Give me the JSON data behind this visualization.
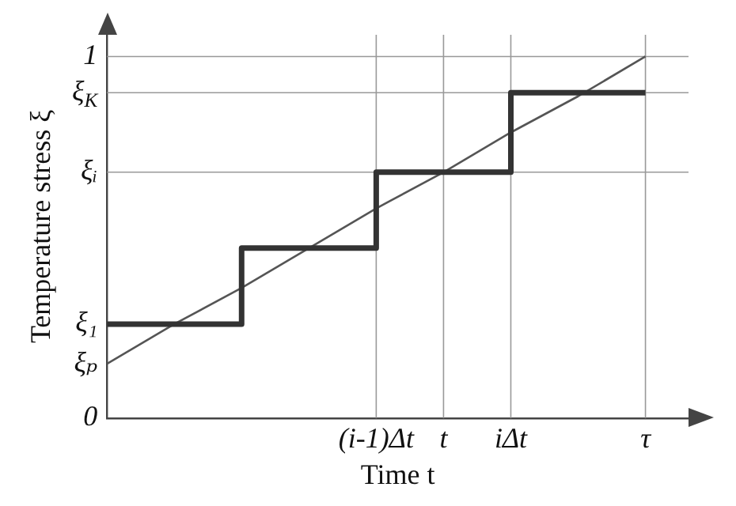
{
  "chart_data": {
    "type": "line",
    "xlabel": "Time t",
    "ylabel": "Temperature stress ξ",
    "categories": [
      null,
      null,
      null,
      null,
      "(i-1)Δt",
      "t",
      "iΔt",
      null,
      "τ"
    ],
    "ylim": [
      0,
      1.06
    ],
    "yticks": [
      0,
      {
        "value": 0.15,
        "label": "ξₚ"
      },
      {
        "value": 0.26,
        "label": "ξ₁"
      },
      {
        "value": 0.68,
        "label": "ξᵢ"
      },
      {
        "value": 0.9,
        "label": "ξ$_{K}$"
      },
      1
    ],
    "series": [
      {
        "type": "step",
        "color": "#333333",
        "values": [
          0.26,
          0.26,
          0.47,
          0.47,
          0.68,
          0.68,
          0.9,
          0.9,
          0.9
        ]
      },
      {
        "type": "line",
        "color": "#555555",
        "values": [
          0.15,
          0.26,
          0.36,
          0.47,
          0.58,
          0.68,
          0.79,
          0.89,
          1
        ]
      }
    ],
    "ref_lines": [
      {
        "axis": "y",
        "value": 1,
        "color": "#999999"
      },
      {
        "axis": "y",
        "value": 0.9,
        "color": "#999999"
      },
      {
        "axis": "y",
        "value": 0.68,
        "color": "#999999"
      },
      {
        "axis": "x",
        "value": "(i-1)Δt",
        "color": "#999999"
      },
      {
        "axis": "x",
        "value": "t",
        "color": "#999999"
      },
      {
        "axis": "x",
        "value": "iΔt",
        "color": "#999999"
      },
      {
        "axis": "x",
        "value": "τ",
        "color": "#999999"
      }
    ],
    "grid": false,
    "legend": false
  }
}
